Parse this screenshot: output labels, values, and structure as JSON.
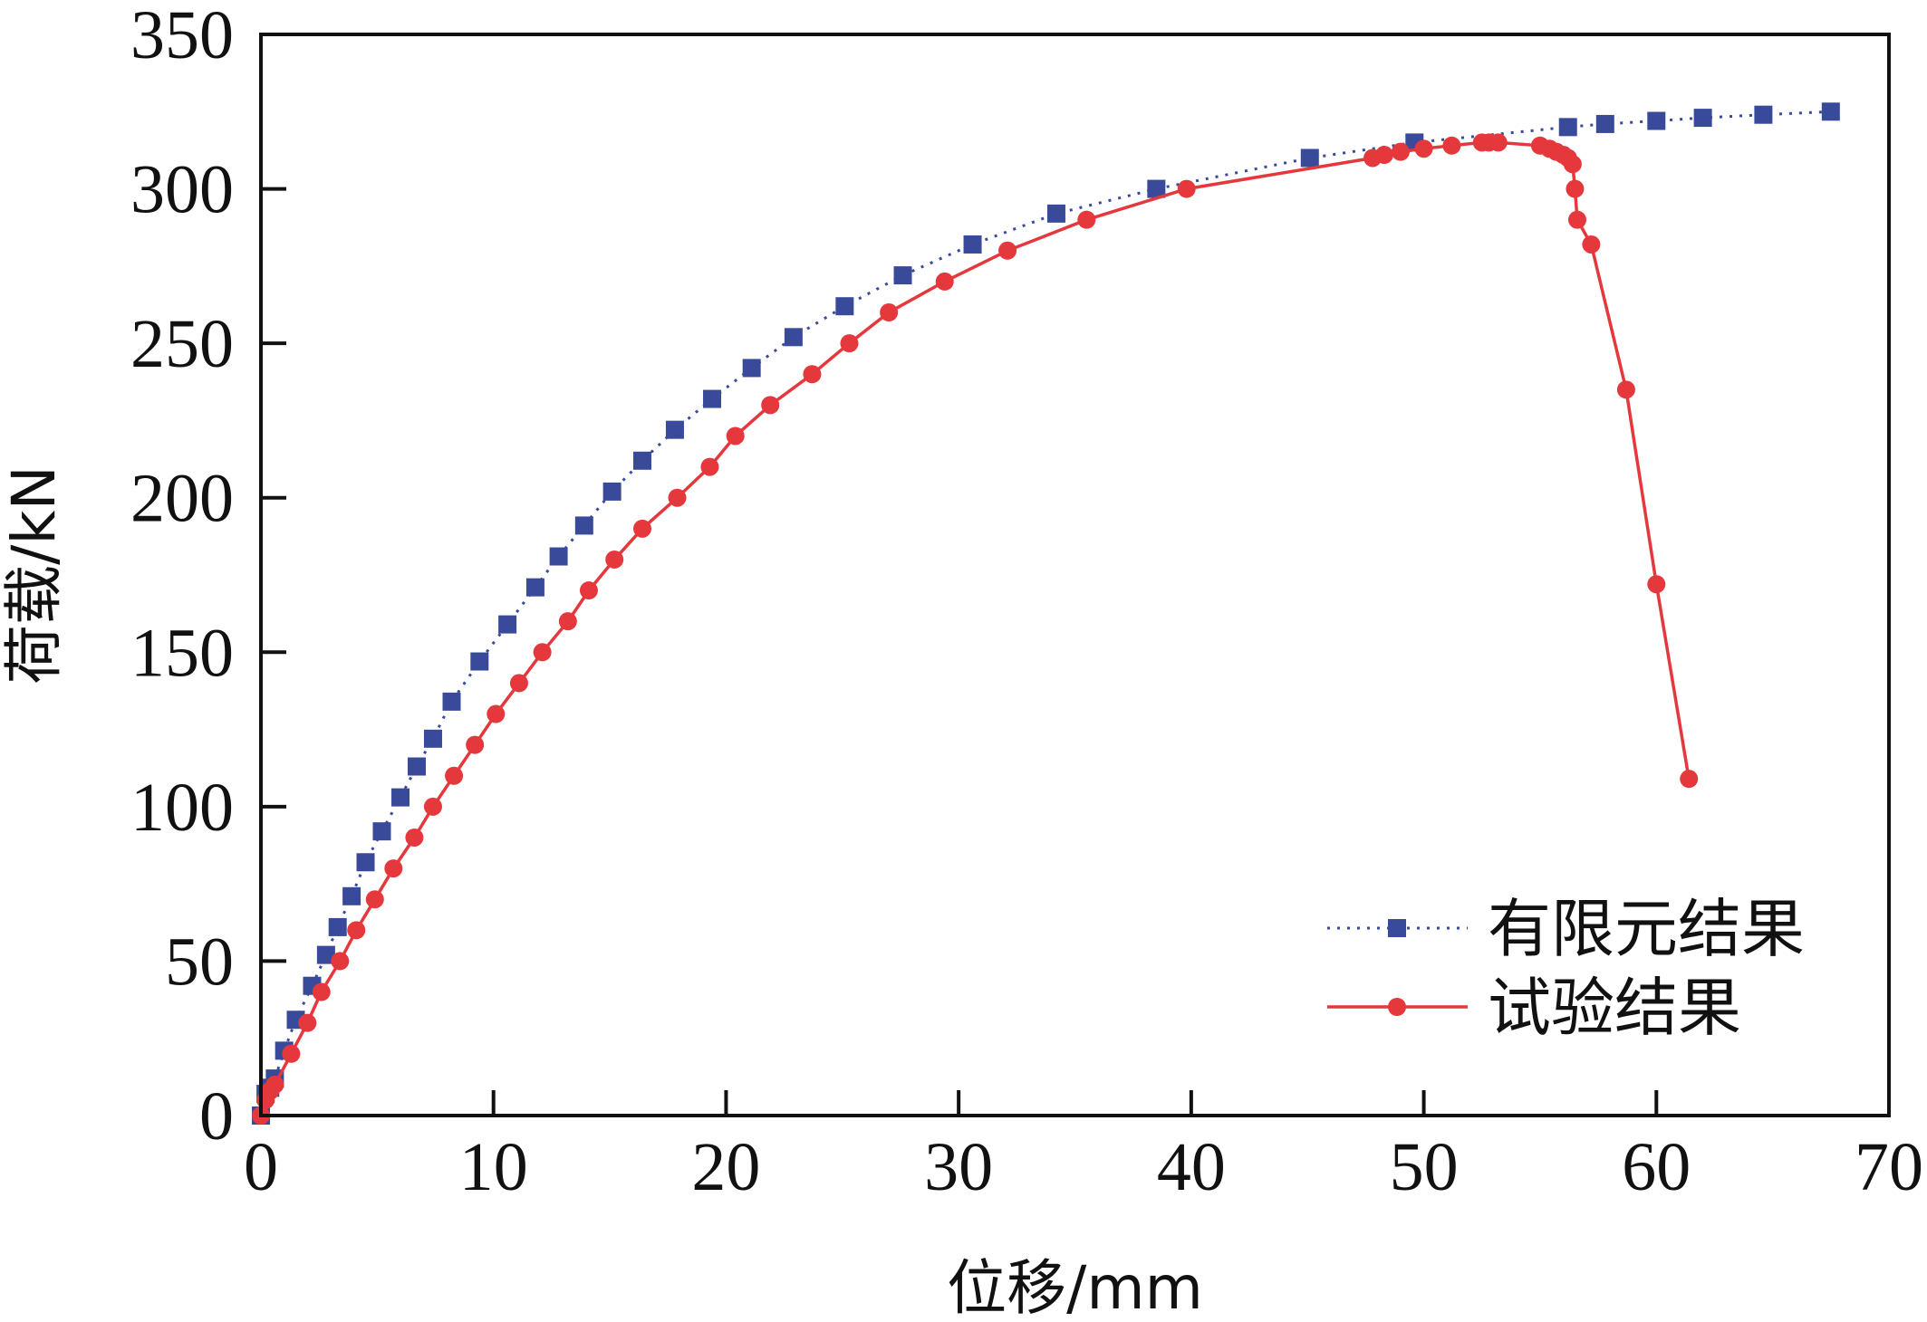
{
  "chart_data": {
    "type": "line",
    "title": "",
    "xlabel": "位移/mm",
    "ylabel": "荷载/kN",
    "xlim": [
      0,
      70
    ],
    "ylim": [
      0,
      350
    ],
    "xticks": [
      "0",
      "10",
      "20",
      "30",
      "40",
      "50",
      "60",
      "70"
    ],
    "yticks": [
      "0",
      "50",
      "100",
      "150",
      "200",
      "250",
      "300",
      "350"
    ],
    "grid": false,
    "legend_position": "bottom-right",
    "series": [
      {
        "name": "有限元结果",
        "color": "#3a4a9a",
        "line_style": "dotted",
        "marker": "square",
        "x": [
          0,
          0.2,
          0.4,
          0.6,
          1.0,
          1.5,
          2.2,
          2.8,
          3.3,
          3.9,
          4.5,
          5.2,
          6.0,
          6.7,
          7.4,
          8.2,
          9.4,
          10.6,
          11.8,
          12.8,
          13.9,
          15.1,
          16.4,
          17.8,
          19.4,
          21.1,
          22.9,
          25.1,
          27.6,
          30.6,
          34.2,
          38.5,
          45.1,
          49.6,
          56.2,
          57.8,
          60.0,
          62.0,
          64.6,
          67.5
        ],
        "y": [
          0,
          7,
          9,
          12,
          21,
          31,
          42,
          52,
          61,
          71,
          82,
          92,
          103,
          113,
          122,
          134,
          147,
          159,
          171,
          181,
          191,
          202,
          212,
          222,
          232,
          242,
          252,
          262,
          272,
          282,
          292,
          300,
          310,
          315,
          320,
          321,
          322,
          323,
          324,
          325
        ]
      },
      {
        "name": "试验结果",
        "color": "#e5383c",
        "line_style": "solid",
        "marker": "circle",
        "x": [
          0,
          0.2,
          0.4,
          0.6,
          1.3,
          2.0,
          2.6,
          3.4,
          4.1,
          4.9,
          5.7,
          6.6,
          7.4,
          8.3,
          9.2,
          10.1,
          11.1,
          12.1,
          13.2,
          14.1,
          15.2,
          16.4,
          17.9,
          19.3,
          20.4,
          21.9,
          23.7,
          25.3,
          27.0,
          29.4,
          32.1,
          35.5,
          39.8,
          47.8,
          48.3,
          49.0,
          50.0,
          51.2,
          52.5,
          52.8,
          53.2,
          55.0,
          55.4,
          55.7,
          56.0,
          56.2,
          56.4,
          56.5,
          56.6,
          57.2,
          58.7,
          60.0,
          61.4
        ],
        "y": [
          0,
          5,
          8,
          10,
          20,
          30,
          40,
          50,
          60,
          70,
          80,
          90,
          100,
          110,
          120,
          130,
          140,
          150,
          160,
          170,
          180,
          190,
          200,
          210,
          220,
          230,
          240,
          250,
          260,
          270,
          280,
          290,
          300,
          310,
          311,
          312,
          313,
          314,
          315,
          315,
          315,
          314,
          313,
          312,
          311,
          310,
          308,
          300,
          290,
          282,
          235,
          172,
          109
        ]
      }
    ]
  }
}
